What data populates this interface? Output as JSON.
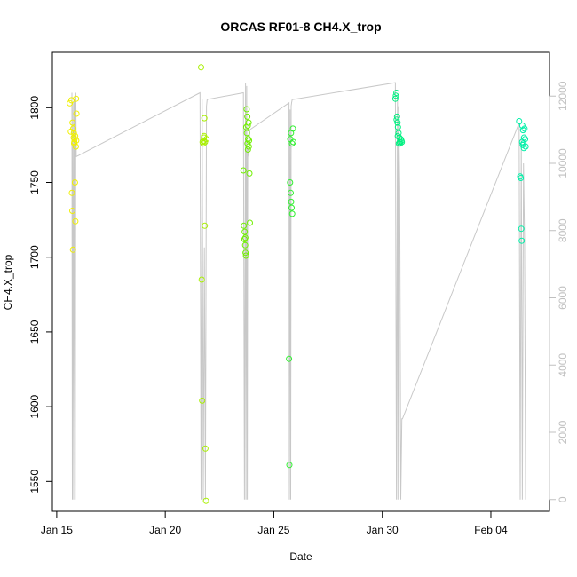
{
  "chart_data": {
    "type": "scatter",
    "title": "ORCAS RF01-8 CH4.X_trop",
    "xlabel": "Date",
    "ylabel": "CH4.X_trop",
    "x_ticks": [
      "Jan 15",
      "Jan 20",
      "Jan 25",
      "Jan 30",
      "Feb 04"
    ],
    "x_tick_days": [
      15,
      20,
      25,
      30,
      35
    ],
    "xlim_days": [
      14.8,
      37.7
    ],
    "y_ticks": [
      1550,
      1600,
      1650,
      1700,
      1750,
      1800
    ],
    "ylim": [
      1530,
      1837
    ],
    "y2_ticks": [
      0,
      2000,
      4000,
      6000,
      8000,
      10000,
      12000
    ],
    "y2lim": [
      -350,
      13300
    ],
    "axis_color_right": "#c0c0c0",
    "background_series": {
      "name": "",
      "color": "#c8c8c8",
      "x_days": [
        15.7,
        15.72,
        15.75,
        15.78,
        15.8,
        15.82,
        15.85,
        15.88,
        15.9,
        21.6,
        21.65,
        21.7,
        21.75,
        21.8,
        21.85,
        21.9,
        21.93,
        23.6,
        23.65,
        23.7,
        23.72,
        23.75,
        23.78,
        23.8,
        23.85,
        23.9,
        25.7,
        25.72,
        25.75,
        25.78,
        25.8,
        25.82,
        25.85,
        25.9,
        30.6,
        30.65,
        30.7,
        30.72,
        30.75,
        30.8,
        30.85,
        30.9,
        30.93,
        36.3,
        36.35,
        36.4,
        36.45,
        36.5,
        36.55,
        36.6
      ],
      "values": [
        12100,
        0,
        11800,
        0,
        11900,
        8500,
        0,
        12100,
        10200,
        12100,
        0,
        11900,
        0,
        7500,
        0,
        11700,
        11900,
        12100,
        0,
        12400,
        0,
        12300,
        0,
        10500,
        10200,
        11000,
        11800,
        0,
        11600,
        0,
        11700,
        11800,
        11900,
        11900,
        12400,
        0,
        12000,
        0,
        11700,
        9300,
        0,
        2400,
        2400,
        11200,
        0,
        10800,
        0,
        10000,
        7700,
        0
      ]
    },
    "series": [
      {
        "name": "",
        "color": "#f0f000",
        "x_days": [
          15.6,
          15.65,
          15.7,
          15.72,
          15.75,
          15.78,
          15.8,
          15.82,
          15.85,
          15.88,
          15.9,
          15.68,
          15.73,
          15.76,
          15.79,
          15.81,
          15.84,
          15.86,
          15.89,
          15.91
        ],
        "values": [
          1803,
          1784,
          1743,
          1731,
          1705,
          1780,
          1776,
          1779,
          1781,
          1774,
          1778,
          1805,
          1790,
          1786,
          1783,
          1777,
          1750,
          1724,
          1806,
          1796
        ]
      },
      {
        "name": "",
        "color": "#a8f000",
        "x_days": [
          21.65,
          21.68,
          21.7,
          21.72,
          21.75,
          21.78,
          21.8,
          21.82,
          21.85,
          21.88,
          21.9,
          21.76,
          21.79,
          21.83
        ],
        "values": [
          1827,
          1685,
          1604,
          1777,
          1776,
          1780,
          1793,
          1721,
          1572,
          1537,
          1779,
          1778,
          1781,
          1777
        ]
      },
      {
        "name": "",
        "color": "#70f000",
        "x_days": [
          23.6,
          23.62,
          23.65,
          23.68,
          23.7,
          23.72,
          23.75,
          23.78,
          23.8,
          23.82,
          23.85,
          23.88,
          23.9,
          23.66,
          23.69,
          23.73,
          23.76,
          23.79,
          23.81,
          23.84,
          23.86
        ],
        "values": [
          1758,
          1721,
          1712,
          1708,
          1703,
          1701,
          1799,
          1794,
          1788,
          1779,
          1774,
          1756,
          1723,
          1717,
          1713,
          1787,
          1783,
          1776,
          1772,
          1790,
          1778
        ]
      },
      {
        "name": "",
        "color": "#30f030",
        "x_days": [
          25.7,
          25.72,
          25.75,
          25.78,
          25.8,
          25.82,
          25.85,
          25.88,
          25.9,
          25.76,
          25.79,
          25.84
        ],
        "values": [
          1632,
          1561,
          1750,
          1743,
          1737,
          1733,
          1729,
          1786,
          1777,
          1779,
          1783,
          1776
        ]
      },
      {
        "name": "",
        "color": "#00f080",
        "x_days": [
          30.6,
          30.62,
          30.65,
          30.68,
          30.7,
          30.72,
          30.75,
          30.78,
          30.8,
          30.82,
          30.85,
          30.88,
          30.9,
          30.66,
          30.71,
          30.76
        ],
        "values": [
          1806,
          1808,
          1810,
          1794,
          1790,
          1787,
          1783,
          1780,
          1777,
          1776,
          1779,
          1778,
          1777,
          1792,
          1781,
          1776
        ]
      },
      {
        "name": "",
        "color": "#00f0a8",
        "x_days": [
          36.3,
          36.35,
          36.38,
          36.4,
          36.42,
          36.45,
          36.48,
          36.5,
          36.52,
          36.55,
          36.58,
          36.6,
          36.44,
          36.47,
          36.53
        ],
        "values": [
          1791,
          1754,
          1753,
          1719,
          1711,
          1788,
          1785,
          1776,
          1773,
          1786,
          1779,
          1774,
          1777,
          1775,
          1780
        ]
      }
    ],
    "grid": false,
    "legend": "none"
  }
}
